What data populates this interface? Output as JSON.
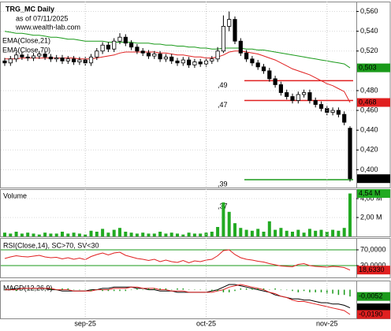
{
  "chart_data": [
    {
      "type": "candlestick",
      "title": "TRG_MC Daily",
      "subtitle": "as of 07/11/2025",
      "source": "www.wealth-lab.com",
      "open": [
        0.51,
        0.508,
        0.512,
        0.516,
        0.514,
        0.513,
        0.515,
        0.517,
        0.514,
        0.512,
        0.513,
        0.51,
        0.512,
        0.509,
        0.511,
        0.508,
        0.514,
        0.52,
        0.526,
        0.522,
        0.53,
        0.534,
        0.528,
        0.524,
        0.52,
        0.518,
        0.515,
        0.517,
        0.512,
        0.514,
        0.51,
        0.508,
        0.511,
        0.506,
        0.509,
        0.507,
        0.51,
        0.512,
        0.52,
        0.545,
        0.552,
        0.53,
        0.518,
        0.512,
        0.508,
        0.504,
        0.5,
        0.492,
        0.486,
        0.478,
        0.474,
        0.47,
        0.476,
        0.478,
        0.47,
        0.466,
        0.462,
        0.458,
        0.46,
        0.456,
        0.442
      ],
      "high": [
        0.513,
        0.515,
        0.519,
        0.519,
        0.517,
        0.518,
        0.52,
        0.52,
        0.517,
        0.516,
        0.516,
        0.515,
        0.515,
        0.514,
        0.514,
        0.517,
        0.523,
        0.529,
        0.529,
        0.533,
        0.538,
        0.537,
        0.531,
        0.527,
        0.523,
        0.521,
        0.52,
        0.52,
        0.517,
        0.517,
        0.513,
        0.514,
        0.514,
        0.512,
        0.512,
        0.513,
        0.515,
        0.524,
        0.556,
        0.56,
        0.555,
        0.533,
        0.521,
        0.515,
        0.511,
        0.507,
        0.503,
        0.495,
        0.489,
        0.481,
        0.477,
        0.479,
        0.481,
        0.481,
        0.473,
        0.469,
        0.465,
        0.463,
        0.463,
        0.459,
        0.444
      ],
      "low": [
        0.505,
        0.505,
        0.509,
        0.511,
        0.51,
        0.51,
        0.512,
        0.511,
        0.509,
        0.509,
        0.507,
        0.507,
        0.506,
        0.506,
        0.505,
        0.505,
        0.511,
        0.517,
        0.519,
        0.519,
        0.527,
        0.525,
        0.521,
        0.517,
        0.515,
        0.512,
        0.512,
        0.509,
        0.509,
        0.507,
        0.505,
        0.505,
        0.503,
        0.503,
        0.504,
        0.504,
        0.507,
        0.509,
        0.518,
        0.54,
        0.527,
        0.515,
        0.509,
        0.505,
        0.501,
        0.497,
        0.489,
        0.483,
        0.475,
        0.471,
        0.467,
        0.467,
        0.473,
        0.467,
        0.463,
        0.459,
        0.455,
        0.455,
        0.453,
        0.445,
        0.388
      ],
      "close": [
        0.508,
        0.512,
        0.516,
        0.514,
        0.513,
        0.515,
        0.517,
        0.514,
        0.512,
        0.513,
        0.51,
        0.512,
        0.509,
        0.511,
        0.508,
        0.514,
        0.52,
        0.526,
        0.522,
        0.53,
        0.534,
        0.528,
        0.524,
        0.52,
        0.518,
        0.515,
        0.517,
        0.512,
        0.514,
        0.51,
        0.508,
        0.511,
        0.506,
        0.509,
        0.507,
        0.51,
        0.512,
        0.52,
        0.545,
        0.552,
        0.53,
        0.518,
        0.512,
        0.508,
        0.504,
        0.5,
        0.492,
        0.486,
        0.478,
        0.474,
        0.47,
        0.476,
        0.478,
        0.47,
        0.466,
        0.462,
        0.458,
        0.46,
        0.456,
        0.448,
        0.391
      ],
      "last_label": "0,391",
      "up_color": "#ffffff",
      "down_color": "#000000",
      "series": [
        {
          "name": "EMA(Close,21)",
          "color": "#e02020",
          "last_label": "0,468",
          "values": [
            0.512,
            0.512,
            0.512,
            0.513,
            0.513,
            0.513,
            0.513,
            0.513,
            0.513,
            0.513,
            0.513,
            0.513,
            0.513,
            0.512,
            0.512,
            0.512,
            0.513,
            0.514,
            0.515,
            0.516,
            0.518,
            0.519,
            0.519,
            0.519,
            0.519,
            0.519,
            0.519,
            0.518,
            0.518,
            0.517,
            0.516,
            0.516,
            0.515,
            0.514,
            0.514,
            0.513,
            0.513,
            0.514,
            0.516,
            0.519,
            0.52,
            0.52,
            0.519,
            0.518,
            0.517,
            0.515,
            0.513,
            0.511,
            0.508,
            0.505,
            0.502,
            0.5,
            0.498,
            0.496,
            0.493,
            0.49,
            0.487,
            0.485,
            0.482,
            0.479,
            0.468
          ]
        },
        {
          "name": "EMA(Close,70)",
          "color": "#1a9a1a",
          "last_label": "0,503",
          "values": [
            0.54,
            0.539,
            0.538,
            0.538,
            0.537,
            0.536,
            0.536,
            0.535,
            0.534,
            0.534,
            0.533,
            0.532,
            0.532,
            0.531,
            0.53,
            0.53,
            0.53,
            0.53,
            0.529,
            0.529,
            0.529,
            0.529,
            0.529,
            0.528,
            0.528,
            0.528,
            0.527,
            0.527,
            0.526,
            0.526,
            0.525,
            0.525,
            0.524,
            0.524,
            0.523,
            0.523,
            0.522,
            0.522,
            0.523,
            0.523,
            0.523,
            0.523,
            0.522,
            0.522,
            0.521,
            0.521,
            0.52,
            0.519,
            0.518,
            0.517,
            0.516,
            0.515,
            0.514,
            0.513,
            0.512,
            0.511,
            0.51,
            0.509,
            0.508,
            0.507,
            0.503
          ]
        }
      ],
      "levels": [
        {
          "label": ",49",
          "value": 0.49,
          "color": "#e02020",
          "line": true
        },
        {
          "label": ",47",
          "value": 0.47,
          "color": "#e02020",
          "line": true
        },
        {
          "label": ",39",
          "value": 0.39,
          "color": "#1a9a1a",
          "line": true
        },
        {
          "label": ",37",
          "value": 0.37,
          "color": "#000000",
          "line": false
        }
      ],
      "ylim": [
        0.382,
        0.57
      ],
      "yticks": [
        {
          "value": 0.56,
          "label": "0,560"
        },
        {
          "value": 0.54,
          "label": "0,540"
        },
        {
          "value": 0.52,
          "label": "0,520"
        },
        {
          "value": 0.48,
          "label": "0,480"
        },
        {
          "value": 0.46,
          "label": "0,460"
        },
        {
          "value": 0.44,
          "label": "0,440"
        },
        {
          "value": 0.42,
          "label": "0,420"
        },
        {
          "value": 0.4,
          "label": "0,400"
        }
      ],
      "grid": true
    },
    {
      "type": "bar",
      "title": "Volume",
      "color": "#22aa22",
      "last_label": "4,54 M",
      "values": [
        0.4,
        0.3,
        0.5,
        0.3,
        0.4,
        0.3,
        0.2,
        0.4,
        0.3,
        0.3,
        0.5,
        0.3,
        0.4,
        0.3,
        0.2,
        0.6,
        0.5,
        0.8,
        0.4,
        0.7,
        0.9,
        0.5,
        0.4,
        0.3,
        0.4,
        0.3,
        0.3,
        0.5,
        0.3,
        0.4,
        0.3,
        0.2,
        0.4,
        0.3,
        0.3,
        0.4,
        0.5,
        1.0,
        3.6,
        2.6,
        1.4,
        0.9,
        0.7,
        0.6,
        0.8,
        0.5,
        1.6,
        0.7,
        0.9,
        0.6,
        0.5,
        0.7,
        0.4,
        0.8,
        0.6,
        0.7,
        0.5,
        0.7,
        0.6,
        0.9,
        4.54
      ],
      "ylim": [
        0,
        5
      ],
      "yticks": [
        {
          "value": 4,
          "label": "4,00 M"
        },
        {
          "value": 2,
          "label": "2,00 M"
        }
      ],
      "grid": true
    },
    {
      "type": "line",
      "title": "RSI(Close,14), SC>70, SV<30",
      "grid_color": "#1a9a1a",
      "series": [
        {
          "color": "#e02020",
          "last_label": "18,6330",
          "values": [
            48,
            52,
            55,
            53,
            52,
            54,
            56,
            52,
            50,
            51,
            47,
            50,
            46,
            49,
            45,
            53,
            58,
            62,
            57,
            62,
            64,
            56,
            52,
            48,
            46,
            43,
            46,
            40,
            44,
            40,
            38,
            43,
            37,
            42,
            40,
            44,
            46,
            55,
            68,
            70,
            58,
            50,
            46,
            44,
            41,
            39,
            35,
            32,
            29,
            28,
            27,
            33,
            35,
            30,
            28,
            27,
            26,
            28,
            27,
            25,
            18.633
          ]
        }
      ],
      "ylim": [
        0,
        100
      ],
      "yticks": [
        {
          "value": 70,
          "label": "70,0000"
        },
        {
          "value": 30,
          "label": "30,0000"
        }
      ],
      "grid": true
    },
    {
      "type": "macd",
      "title": "MACD(12,26,9)",
      "series": [
        {
          "color": "#000000",
          "last_label": "-0,0139",
          "values": [
            0.0,
            0.0,
            0.001,
            0.001,
            0.001,
            0.001,
            0.001,
            0.001,
            0.0,
            0.0,
            -0.001,
            -0.001,
            -0.001,
            -0.001,
            -0.001,
            0.0,
            0.0,
            0.001,
            0.001,
            0.002,
            0.002,
            0.002,
            0.002,
            0.001,
            0.001,
            0.0,
            0.0,
            -0.001,
            -0.001,
            -0.001,
            -0.002,
            -0.002,
            -0.002,
            -0.002,
            -0.002,
            -0.002,
            -0.001,
            0.0,
            0.002,
            0.004,
            0.004,
            0.003,
            0.002,
            0.001,
            0.0,
            -0.001,
            -0.002,
            -0.004,
            -0.005,
            -0.006,
            -0.007,
            -0.007,
            -0.008,
            -0.008,
            -0.009,
            -0.01,
            -0.01,
            -0.011,
            -0.011,
            -0.012,
            -0.0139
          ]
        },
        {
          "color": "#e02020",
          "last_label": "-0,0190",
          "values": [
            0.0,
            0.0,
            0.0,
            0.001,
            0.001,
            0.001,
            0.001,
            0.001,
            0.001,
            0.0,
            0.0,
            0.0,
            -0.001,
            -0.001,
            -0.001,
            -0.001,
            0.0,
            0.0,
            0.0,
            0.001,
            0.001,
            0.001,
            0.002,
            0.002,
            0.001,
            0.001,
            0.001,
            0.0,
            0.0,
            -0.001,
            -0.001,
            -0.001,
            -0.002,
            -0.002,
            -0.002,
            -0.002,
            -0.002,
            -0.001,
            0.0,
            0.002,
            0.003,
            0.004,
            0.003,
            0.002,
            0.001,
            0.0,
            -0.002,
            -0.003,
            -0.005,
            -0.006,
            -0.008,
            -0.009,
            -0.009,
            -0.01,
            -0.011,
            -0.012,
            -0.013,
            -0.014,
            -0.015,
            -0.016,
            -0.019
          ]
        },
        {
          "color": "#1a9a1a",
          "last_label": "-0,0052",
          "bars": true,
          "values": [
            0,
            0,
            -0.001,
            0,
            0,
            0,
            0,
            0,
            0.001,
            0,
            0.001,
            0.001,
            0,
            0,
            0,
            -0.001,
            0,
            -0.001,
            -0.001,
            -0.001,
            -0.001,
            -0.001,
            0,
            0.001,
            0,
            0.001,
            0.001,
            0.001,
            0.001,
            0,
            0.001,
            0.001,
            0,
            0,
            0,
            0,
            -0.001,
            -0.001,
            -0.002,
            -0.002,
            -0.001,
            0.001,
            0.001,
            0.001,
            0.001,
            0.001,
            0,
            0.001,
            0,
            0,
            -0.001,
            -0.002,
            -0.001,
            -0.002,
            -0.002,
            -0.002,
            -0.003,
            -0.003,
            -0.004,
            -0.004,
            -0.0052
          ]
        }
      ],
      "ylim": [
        -0.022,
        0.007
      ],
      "xticks": [
        {
          "value": 14,
          "label": "sep-25"
        },
        {
          "value": 35,
          "label": "oct-25"
        },
        {
          "value": 56,
          "label": "nov-25"
        }
      ]
    }
  ]
}
